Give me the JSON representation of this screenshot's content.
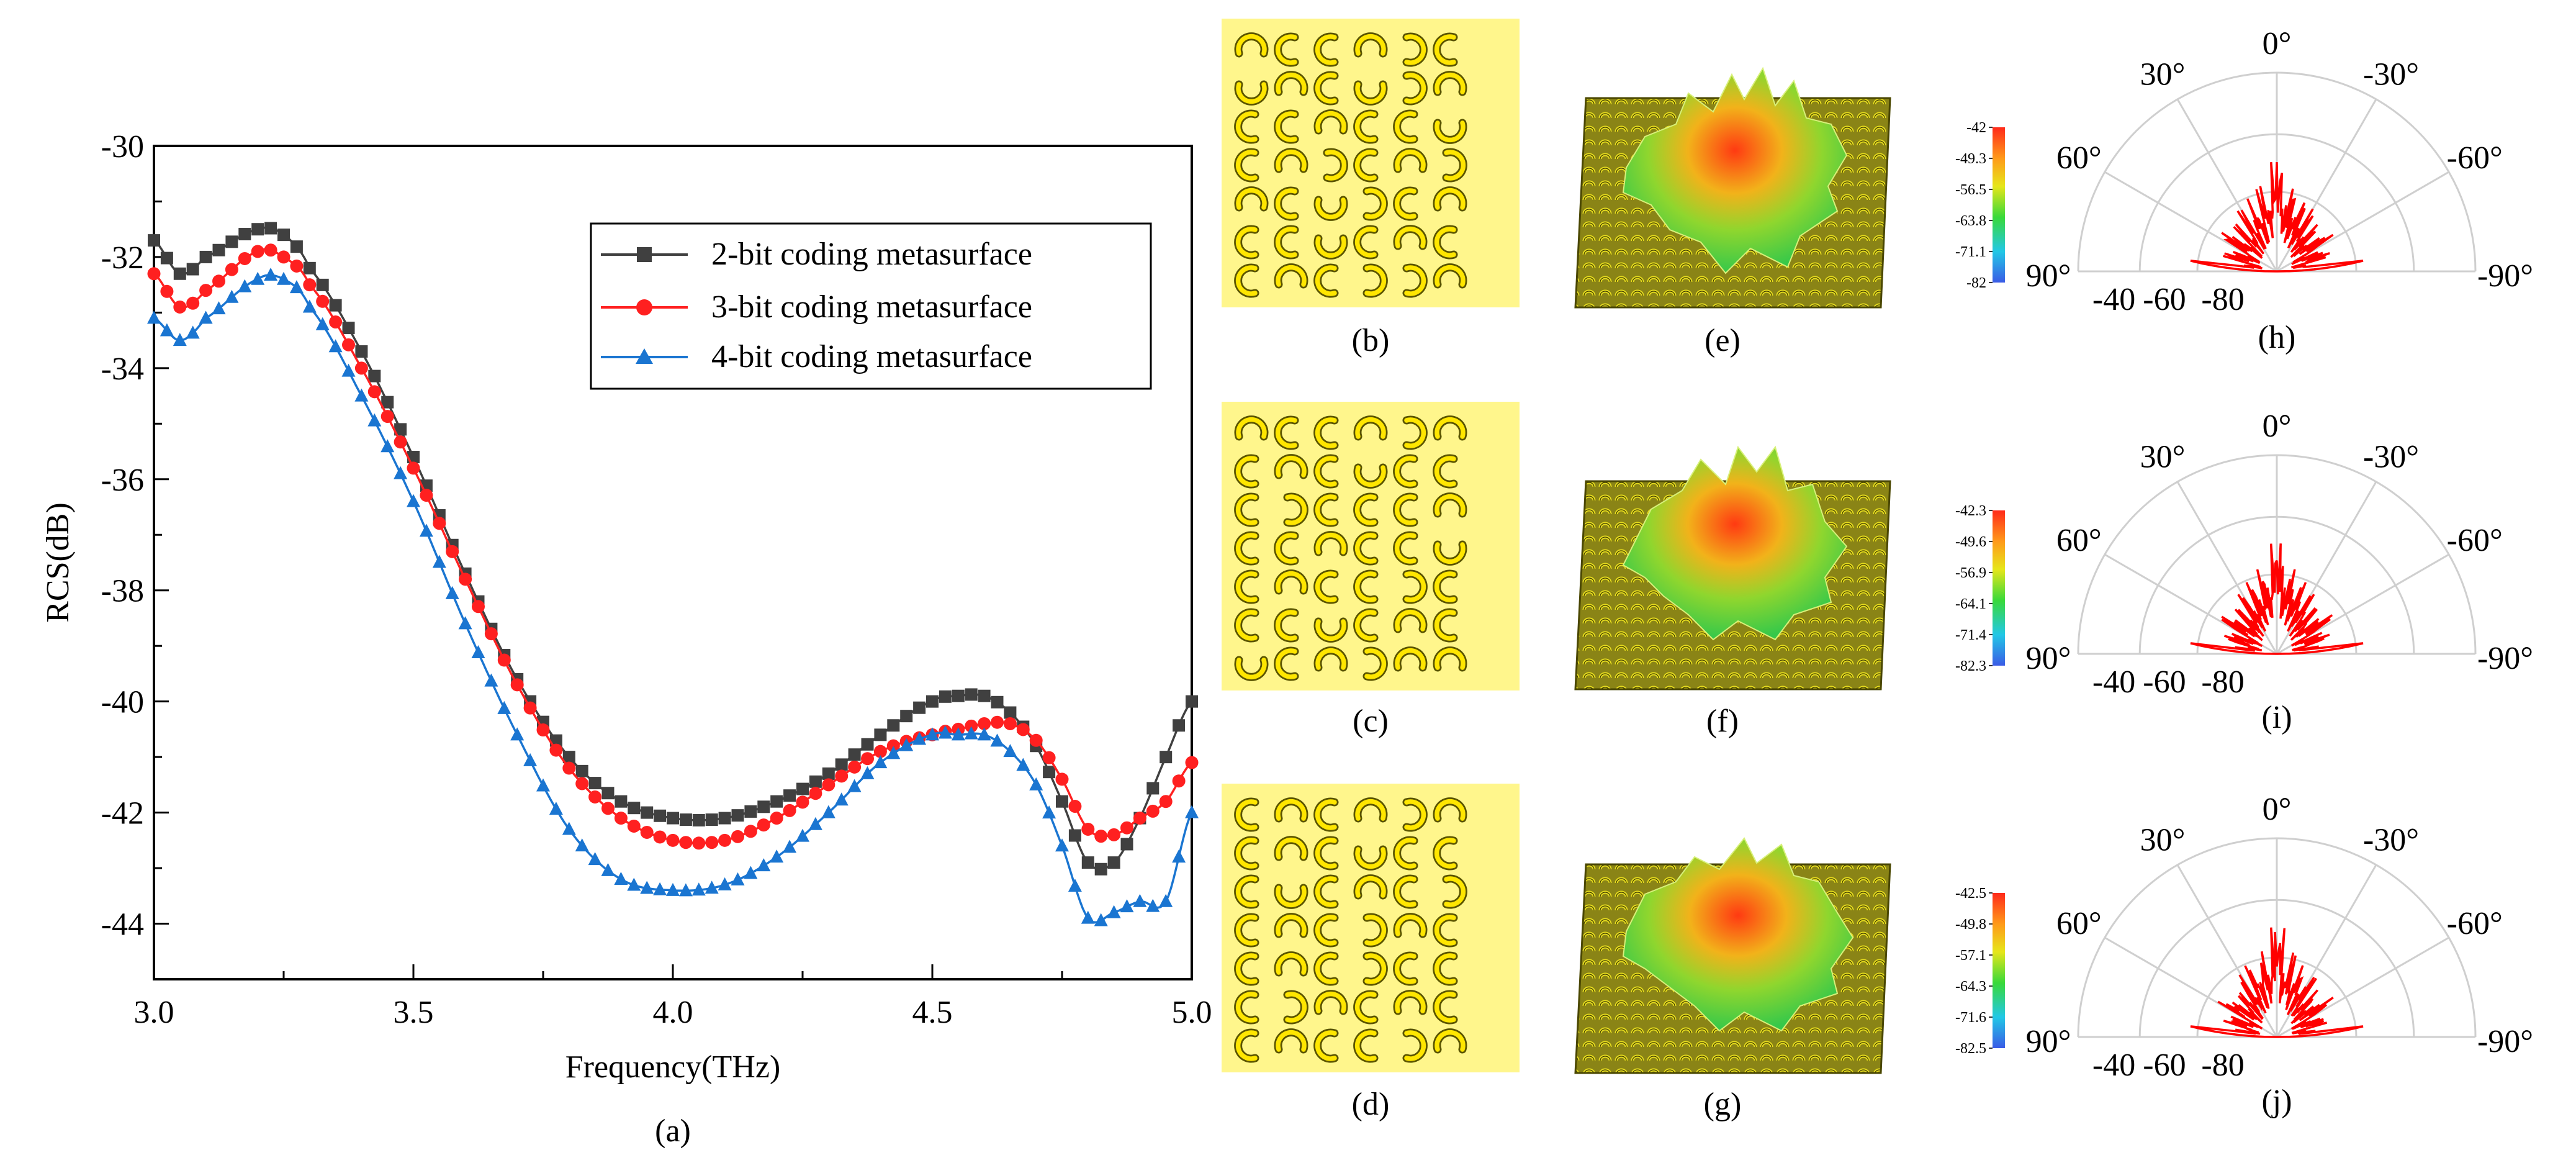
{
  "figure": {
    "panel_labels": [
      "(a)",
      "(b)",
      "(c)",
      "(d)",
      "(e)",
      "(f)",
      "(g)",
      "(h)",
      "(i)",
      "(j)"
    ]
  },
  "chart_data": [
    {
      "panel": "(a)",
      "type": "line",
      "xlabel": "Frequency(THz)",
      "ylabel": "RCS(dB)",
      "xlim": [
        3.0,
        5.0
      ],
      "ylim": [
        -45,
        -30
      ],
      "xticks": [
        "3.0",
        "3.5",
        "4.0",
        "4.5",
        "5.0"
      ],
      "yticks": [
        "-44",
        "-42",
        "-40",
        "-38",
        "-36",
        "-34",
        "-32",
        "-30"
      ],
      "grid": false,
      "legend_position": "top-right",
      "x_knots": [
        3.0,
        3.05,
        3.1,
        3.2,
        3.25,
        3.3,
        3.4,
        3.5,
        3.6,
        3.7,
        3.8,
        3.9,
        4.0,
        4.1,
        4.2,
        4.3,
        4.4,
        4.5,
        4.55,
        4.6,
        4.65,
        4.7,
        4.75,
        4.8,
        4.85,
        4.9,
        4.95,
        5.0
      ],
      "series": [
        {
          "name": "2-bit coding metasurface",
          "color": "#404040",
          "marker": "square",
          "values": [
            -31.7,
            -32.3,
            -32.0,
            -31.5,
            -31.6,
            -32.2,
            -33.7,
            -35.6,
            -37.7,
            -39.6,
            -41.0,
            -41.8,
            -42.1,
            -42.1,
            -41.8,
            -41.3,
            -40.6,
            -40.0,
            -39.9,
            -39.9,
            -40.2,
            -40.8,
            -41.8,
            -42.9,
            -42.9,
            -42.1,
            -41.0,
            -40.0
          ]
        },
        {
          "name": "3-bit coding metasurface",
          "color": "#ff2020",
          "marker": "circle",
          "values": [
            -32.3,
            -32.9,
            -32.6,
            -31.9,
            -32.0,
            -32.5,
            -34.0,
            -35.8,
            -37.8,
            -39.7,
            -41.2,
            -42.1,
            -42.5,
            -42.5,
            -42.1,
            -41.5,
            -40.9,
            -40.6,
            -40.5,
            -40.4,
            -40.4,
            -40.7,
            -41.4,
            -42.3,
            -42.4,
            -42.1,
            -41.8,
            -41.1
          ]
        },
        {
          "name": "4-bit coding metasurface",
          "color": "#1a75d1",
          "marker": "triangle",
          "values": [
            -33.1,
            -33.5,
            -33.1,
            -32.4,
            -32.4,
            -32.9,
            -34.5,
            -36.4,
            -38.6,
            -40.6,
            -42.3,
            -43.2,
            -43.4,
            -43.3,
            -42.8,
            -42.0,
            -41.1,
            -40.6,
            -40.6,
            -40.6,
            -40.9,
            -41.5,
            -42.6,
            -43.9,
            -43.8,
            -43.6,
            -43.6,
            -42.0
          ]
        }
      ]
    },
    {
      "panel": "(e)",
      "type": "heatmap",
      "colorbar_ticks": [
        "-42",
        "-49.3",
        "-56.5",
        "-63.8",
        "-71.1",
        "-82"
      ]
    },
    {
      "panel": "(f)",
      "type": "heatmap",
      "colorbar_ticks": [
        "-42.3",
        "-49.6",
        "-56.9",
        "-64.1",
        "-71.4",
        "-82.3"
      ]
    },
    {
      "panel": "(g)",
      "type": "heatmap",
      "colorbar_ticks": [
        "-42.5",
        "-49.8",
        "-57.1",
        "-64.3",
        "-71.6",
        "-82.5"
      ]
    },
    {
      "panel": "(h)",
      "type": "polar",
      "angle_labels": [
        "0°",
        "30°",
        "-30°",
        "60°",
        "-60°",
        "90°",
        "-90°"
      ],
      "radial_labels": [
        "-40",
        "-60",
        "-80"
      ]
    },
    {
      "panel": "(i)",
      "type": "polar",
      "angle_labels": [
        "0°",
        "30°",
        "-30°",
        "60°",
        "-60°",
        "90°",
        "-90°"
      ],
      "radial_labels": [
        "-40",
        "-60",
        "-80"
      ]
    },
    {
      "panel": "(j)",
      "type": "polar",
      "angle_labels": [
        "0°",
        "30°",
        "-30°",
        "60°",
        "-60°",
        "90°",
        "-90°"
      ],
      "radial_labels": [
        "-40",
        "-60",
        "-80"
      ]
    }
  ],
  "coding_patterns": [
    {
      "panel": "(b)",
      "rows": [
        "ULLURL",
        "DULDRU",
        "LLULLD",
        "LURLUR",
        "ULDRLU",
        "LLDLUL",
        "LULRRU"
      ]
    },
    {
      "panel": "(c)",
      "rows": [
        "ULLURU",
        "LULDLL",
        "LRLLLU",
        "LLULLD",
        "LULLRL",
        "LLDLUL",
        "DLURUU"
      ]
    },
    {
      "panel": "(d)",
      "rows": [
        "LULURU",
        "LULDLL",
        "LDLULR",
        "LULRUL",
        "LULRLL",
        "LRULUL",
        "LULLRU"
      ]
    }
  ],
  "colors": {
    "coding_background": "#fff68c",
    "ring_fill": "#ffe600",
    "ring_stroke": "#5a5400",
    "pattern_line": "#ff0000",
    "polar_grid": "#cfcfcf"
  }
}
